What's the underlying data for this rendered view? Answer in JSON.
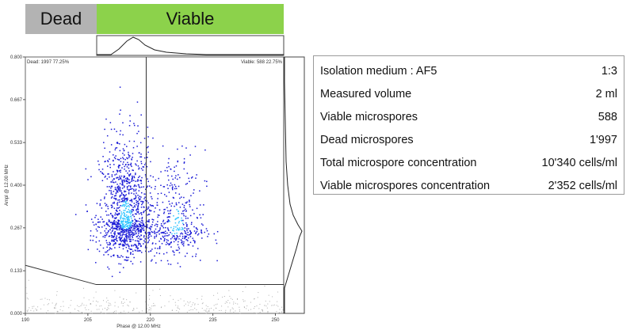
{
  "header": {
    "dead_label": "Dead",
    "viable_label": "Viable"
  },
  "chart_data": {
    "type": "scatter",
    "xlabel": "Phase @ 12.00 MHz",
    "ylabel": "Ampl @ 12.00 MHz",
    "x_ticks": [
      "190",
      "205",
      "220",
      "235",
      "250"
    ],
    "y_ticks": [
      "0.000",
      "0.133",
      "0.267",
      "0.400",
      "0.533",
      "0.667",
      "0.800"
    ],
    "xlim": [
      190,
      252
    ],
    "ylim": [
      0,
      0.8
    ],
    "gate_label_dead": "Dead: 1997  77.25%",
    "gate_label_viable": "Viable: 588  22.75%",
    "gate_x": 219,
    "gate_lower_boundary": [
      [
        190,
        0.15
      ],
      [
        207,
        0.09
      ],
      [
        252,
        0.09
      ]
    ],
    "clusters": [
      {
        "name": "dead",
        "cx": 214,
        "cy": 0.29,
        "count": 1997
      },
      {
        "name": "viable",
        "cx": 226,
        "cy": 0.27,
        "count": 588
      }
    ],
    "colors": {
      "low_density": "#1a1ad6",
      "high_density": "#33c6ff",
      "debris": "#b0b0b0"
    }
  },
  "summary": {
    "rows": [
      {
        "label": "Isolation medium : AF5",
        "value": "1:3"
      },
      {
        "label": "Measured volume",
        "value": "2 ml"
      },
      {
        "label": "Viable microspores",
        "value": "588"
      },
      {
        "label": "Dead microspores",
        "value": "1'997"
      },
      {
        "label": "Total microspore concentration",
        "value": "10'340 cells/ml"
      },
      {
        "label": "Viable microspores concentration",
        "value": "2'352 cells/ml"
      }
    ]
  }
}
